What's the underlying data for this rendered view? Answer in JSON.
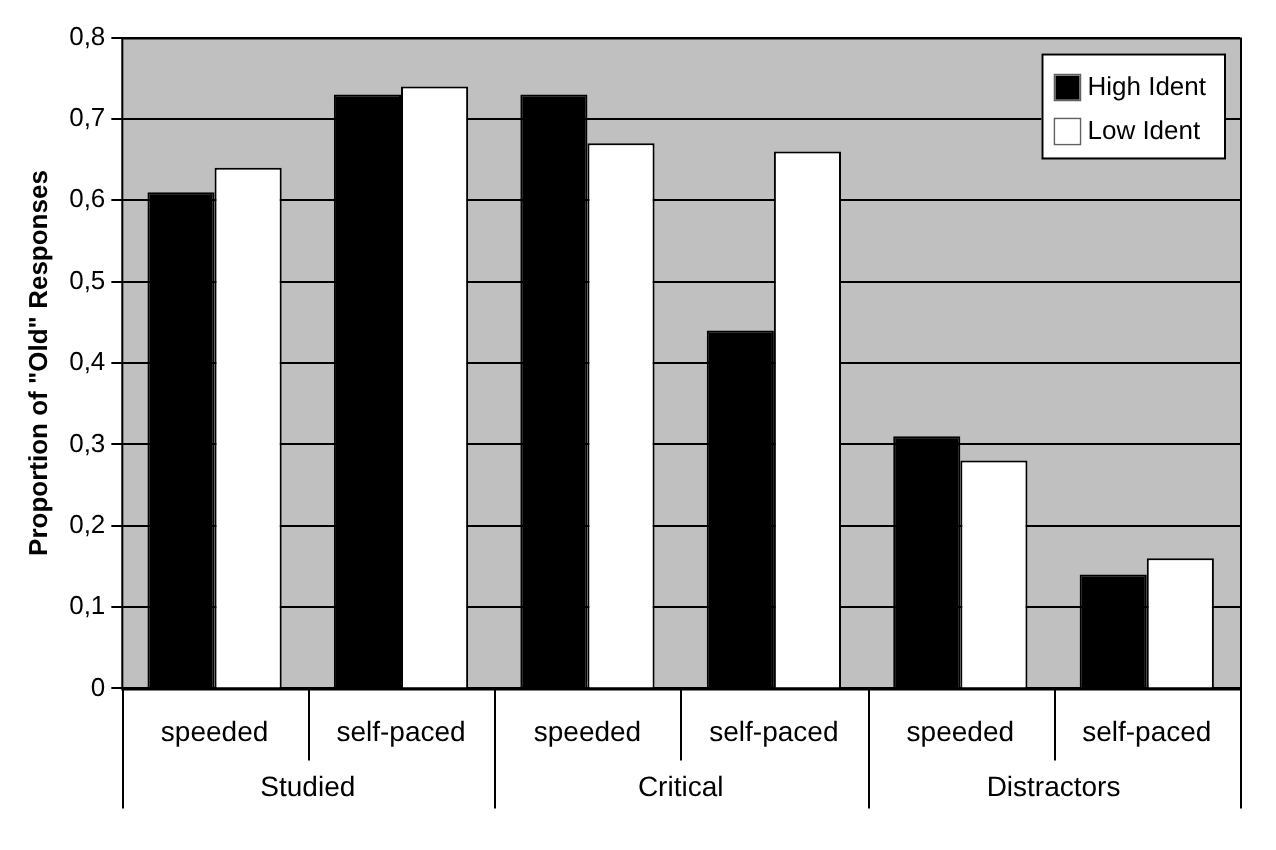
{
  "chart_data": {
    "type": "bar",
    "ylabel": "Proportion of \"Old\" Responses",
    "categories": [
      "speeded",
      "self-paced",
      "speeded",
      "self-paced",
      "speeded",
      "self-paced"
    ],
    "series": [
      {
        "name": "High Ident",
        "color": "#000000",
        "values": [
          0.61,
          0.73,
          0.73,
          0.44,
          0.31,
          0.14
        ]
      },
      {
        "name": "Low Ident",
        "color": "#ffffff",
        "values": [
          0.64,
          0.74,
          0.67,
          0.66,
          0.28,
          0.16
        ]
      }
    ],
    "annotations": [
      "Studied",
      "Critical",
      "Distractors"
    ],
    "ylim": [
      0,
      0.8
    ],
    "yticks": [
      0,
      {
        "value": 0.1,
        "label": "0,1"
      },
      {
        "value": 0.2,
        "label": "0,2"
      },
      {
        "value": 0.3,
        "label": "0,3"
      },
      {
        "value": 0.4,
        "label": "0,4"
      },
      {
        "value": 0.5,
        "label": "0,5"
      },
      {
        "value": 0.6,
        "label": "0,6"
      },
      {
        "value": 0.7,
        "label": "0,7"
      },
      {
        "value": 0.8,
        "label": "0,8"
      }
    ],
    "grid": "y",
    "legend": "top right"
  }
}
